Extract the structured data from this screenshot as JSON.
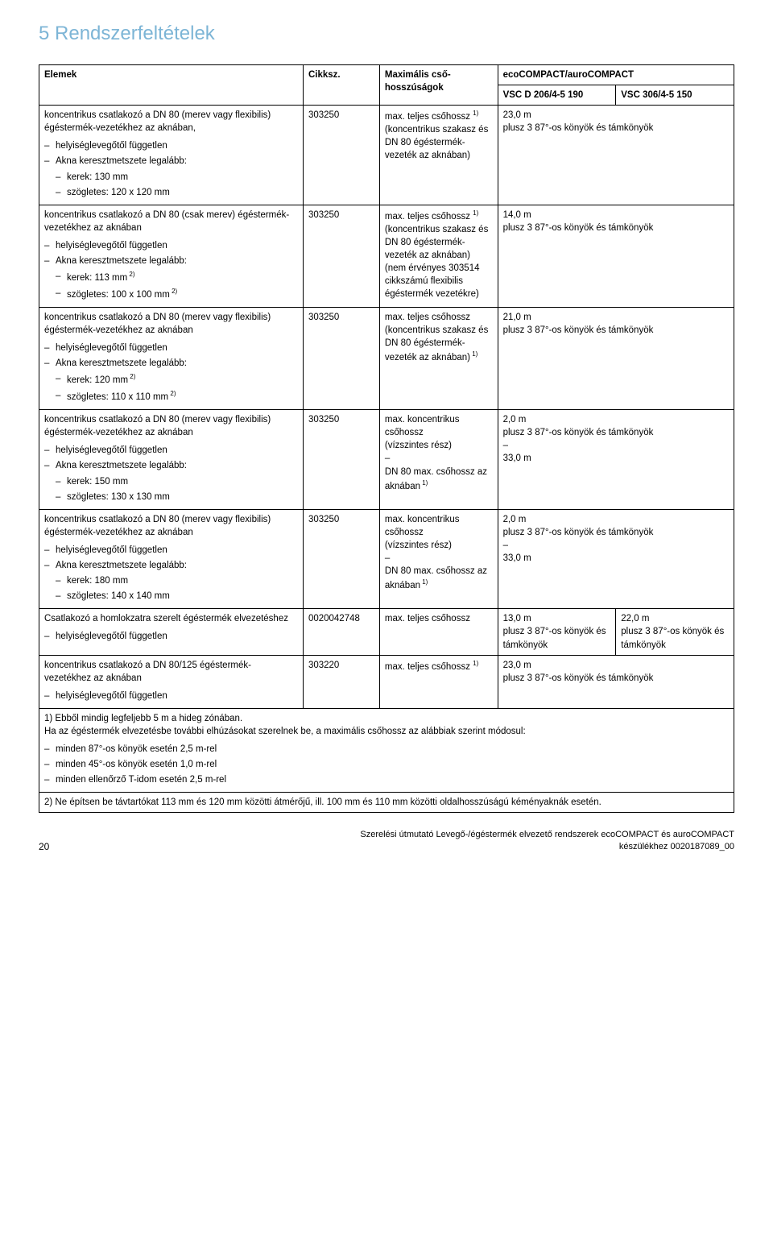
{
  "section_title": "5 Rendszerfeltételek",
  "header": {
    "elemek": "Elemek",
    "cikksz": "Cikksz.",
    "max": "Maximális cső-hosszúságok",
    "brand": "ecoCOMPACT/auroCOMPACT",
    "vsc1": "VSC D 206/4-5 190",
    "vsc2": "VSC 306/4-5 150"
  },
  "common": {
    "helyiseg": "helyiséglevegőtől független",
    "akna": "Akna keresztmetszete legalább:",
    "plusz": "plusz 3 87°-os könyök és támkönyök",
    "dash": "–"
  },
  "rows": [
    {
      "elem_main": "koncentrikus csatlakozó a DN 80 (merev vagy flexibilis) égéstermék-vezetékhez az aknában,",
      "sub": [
        "kerek: 130 mm",
        "szögletes: 120 x 120 mm"
      ],
      "cikksz": "303250",
      "max_lines": [
        "max. teljes csőhossz ",
        "(koncentrikus szakasz és DN 80 égéstermék-vezeték az aknában)"
      ],
      "max_sup_after_first": "1)",
      "combined": true,
      "vsc_top": "23,0 m"
    },
    {
      "elem_main": "koncentrikus csatlakozó a DN 80 (csak merev) égéstermék-vezetékhez az aknában",
      "sub_sup": [
        {
          "t": "kerek: 113 mm",
          "s": " 2)"
        },
        {
          "t": "szögletes: 100 x 100 mm",
          "s": " 2)"
        }
      ],
      "cikksz": "303250",
      "max_lines": [
        "max. teljes csőhossz ",
        "(koncentrikus szakasz és DN 80 égéstermék-vezeték az aknában)",
        "(nem érvényes 303514 cikkszámú flexibilis égéstermék vezetékre)"
      ],
      "max_sup_after_first": "1)",
      "combined": true,
      "vsc_top": "14,0 m"
    },
    {
      "elem_main": "koncentrikus csatlakozó a DN 80 (merev vagy flexibilis) égéstermék-vezetékhez az aknában",
      "sub_sup": [
        {
          "t": "kerek: 120 mm",
          "s": " 2)"
        },
        {
          "t": "szögletes: 110 x 110 mm",
          "s": " 2)"
        }
      ],
      "cikksz": "303250",
      "max_lines": [
        "max. teljes csőhossz",
        "(koncentrikus szakasz és DN 80 égéstermék-vezeték az aknában)"
      ],
      "max_sup_after_last": " 1)",
      "combined": true,
      "vsc_top": "21,0 m"
    },
    {
      "elem_main": "koncentrikus csatlakozó a DN 80 (merev vagy flexibilis) égéstermék-vezetékhez az aknában",
      "sub": [
        "kerek: 150 mm",
        "szögletes: 130 x 130 mm"
      ],
      "cikksz": "303250",
      "max_lines": [
        "max. koncentrikus csőhossz",
        "(vízszintes rész)",
        "–",
        "DN 80 max. csőhossz az aknában"
      ],
      "max_sup_after_last": " 1)",
      "combined": true,
      "vsc_lines": [
        "2,0 m",
        "plusz 3 87°-os könyök és támkönyök",
        "–",
        "33,0 m"
      ]
    },
    {
      "elem_main": "koncentrikus csatlakozó a DN 80 (merev vagy flexibilis) égéstermék-vezetékhez az aknában",
      "sub": [
        "kerek: 180 mm",
        "szögletes: 140 x 140 mm"
      ],
      "cikksz": "303250",
      "max_lines": [
        "max. koncentrikus csőhossz",
        "(vízszintes rész)",
        "–",
        "DN 80 max. csőhossz az aknában"
      ],
      "max_sup_after_last": " 1)",
      "combined": true,
      "vsc_lines": [
        "2,0 m",
        "plusz 3 87°-os könyök és támkönyök",
        "–",
        "33,0 m"
      ]
    },
    {
      "elem_main": "Csatlakozó a homlokzatra szerelt égéstermék elvezetéshez",
      "only_helyiseg": true,
      "cikksz": "0020042748",
      "max_lines": [
        "max. teljes csőhossz"
      ],
      "combined": false,
      "vsc1_lines": [
        "13,0 m",
        "plusz 3 87°-os könyök és támkönyök"
      ],
      "vsc2_lines": [
        "22,0 m",
        "plusz 3 87°-os könyök és támkönyök"
      ]
    },
    {
      "elem_main": "koncentrikus csatlakozó a DN 80/125 égéstermék-vezetékhez az aknában",
      "only_helyiseg": true,
      "cikksz": "303220",
      "max_lines": [
        "max. teljes csőhossz "
      ],
      "max_sup_after_first": "1)",
      "combined": true,
      "vsc_top": "23,0 m"
    }
  ],
  "footnotes": {
    "l1": "1) Ebből mindig legfeljebb 5 m a hideg zónában.",
    "l2": "Ha az égéstermék elvezetésbe további elhúzásokat szerelnek be, a maximális csőhossz az alábbiak szerint módosul:",
    "bullets": [
      "minden 87°-os könyök esetén 2,5 m-rel",
      "minden 45°-os könyök esetén 1,0 m-rel",
      "minden ellenőrző T-idom esetén 2,5 m-rel"
    ],
    "l3": "2) Ne építsen be távtartókat 113 mm és 120 mm közötti átmérőjű, ill. 100 mm és 110 mm közötti oldalhosszúságú kéményaknák esetén."
  },
  "footer": {
    "page": "20",
    "l1": "Szerelési útmutató Levegő-/égéstermék elvezető rendszerek ecoCOMPACT és auroCOMPACT",
    "l2": "készülékhez 0020187089_00"
  }
}
